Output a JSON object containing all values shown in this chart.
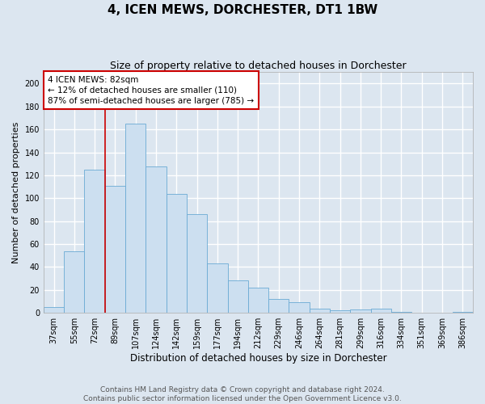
{
  "title": "4, ICEN MEWS, DORCHESTER, DT1 1BW",
  "subtitle": "Size of property relative to detached houses in Dorchester",
  "xlabel": "Distribution of detached houses by size in Dorchester",
  "ylabel": "Number of detached properties",
  "bar_labels": [
    "37sqm",
    "55sqm",
    "72sqm",
    "89sqm",
    "107sqm",
    "124sqm",
    "142sqm",
    "159sqm",
    "177sqm",
    "194sqm",
    "212sqm",
    "229sqm",
    "246sqm",
    "264sqm",
    "281sqm",
    "299sqm",
    "316sqm",
    "334sqm",
    "351sqm",
    "369sqm",
    "386sqm"
  ],
  "bar_values": [
    5,
    54,
    125,
    111,
    165,
    128,
    104,
    86,
    43,
    28,
    22,
    12,
    9,
    4,
    2,
    3,
    4,
    1,
    0,
    0,
    1
  ],
  "bar_color": "#ccdff0",
  "bar_edge_color": "#6aaad4",
  "background_color": "#dce6f0",
  "grid_color": "#ffffff",
  "annotation_text": "4 ICEN MEWS: 82sqm\n← 12% of detached houses are smaller (110)\n87% of semi-detached houses are larger (785) →",
  "annotation_box_color": "#ffffff",
  "annotation_box_edge_color": "#cc0000",
  "vline_color": "#cc0000",
  "vline_x": 2.5,
  "ylim": [
    0,
    210
  ],
  "yticks": [
    0,
    20,
    40,
    60,
    80,
    100,
    120,
    140,
    160,
    180,
    200
  ],
  "footer_text": "Contains HM Land Registry data © Crown copyright and database right 2024.\nContains public sector information licensed under the Open Government Licence v3.0.",
  "title_fontsize": 11,
  "subtitle_fontsize": 9,
  "xlabel_fontsize": 8.5,
  "ylabel_fontsize": 8,
  "tick_fontsize": 7,
  "annotation_fontsize": 7.5,
  "footer_fontsize": 6.5
}
